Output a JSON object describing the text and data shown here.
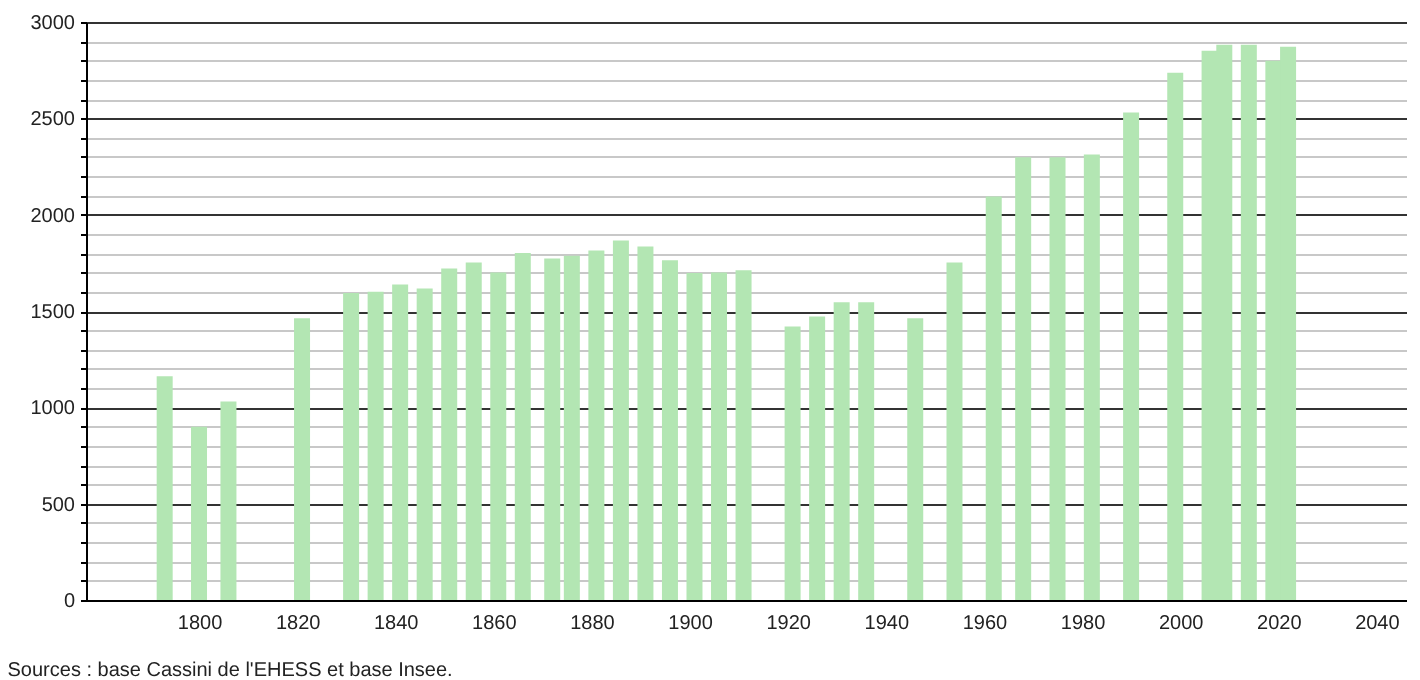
{
  "chart_data": {
    "type": "bar",
    "x": [
      1793,
      1800,
      1806,
      1821,
      1831,
      1836,
      1841,
      1846,
      1851,
      1856,
      1861,
      1866,
      1872,
      1876,
      1881,
      1886,
      1891,
      1896,
      1901,
      1906,
      1911,
      1921,
      1926,
      1931,
      1936,
      1946,
      1954,
      1962,
      1968,
      1975,
      1982,
      1990,
      1999,
      2006,
      2009,
      2014,
      2019,
      2022
    ],
    "values": [
      1161,
      899,
      1030,
      1462,
      1593,
      1600,
      1638,
      1617,
      1721,
      1752,
      1700,
      1801,
      1773,
      1787,
      1814,
      1866,
      1835,
      1763,
      1697,
      1700,
      1711,
      1420,
      1472,
      1545,
      1545,
      1462,
      1752,
      2094,
      2298,
      2298,
      2312,
      2530,
      2737,
      2851,
      2882,
      2882,
      2799,
      2872
    ],
    "color": "#b3e6b3",
    "xlim": [
      1779,
      2044
    ],
    "xticks": [
      1800,
      1820,
      1840,
      1860,
      1880,
      1900,
      1920,
      1940,
      1960,
      1980,
      2000,
      2020,
      2040
    ],
    "ylim": [
      0,
      3000
    ],
    "yticks": [
      0,
      {
        "value": 100,
        "label": null
      },
      {
        "value": 200,
        "label": null
      },
      {
        "value": 300,
        "label": null
      },
      {
        "value": 400,
        "label": null
      },
      500,
      {
        "value": 600,
        "label": null
      },
      {
        "value": 700,
        "label": null
      },
      {
        "value": 800,
        "label": null
      },
      {
        "value": 900,
        "label": null
      },
      1000,
      {
        "value": 1100,
        "label": null
      },
      {
        "value": 1200,
        "label": null
      },
      {
        "value": 1300,
        "label": null
      },
      {
        "value": 1400,
        "label": null
      },
      1500,
      {
        "value": 1600,
        "label": null
      },
      {
        "value": 1700,
        "label": null
      },
      {
        "value": 1800,
        "label": null
      },
      {
        "value": 1900,
        "label": null
      },
      2000,
      {
        "value": 2100,
        "label": null
      },
      {
        "value": 2200,
        "label": null
      },
      {
        "value": 2300,
        "label": null
      },
      {
        "value": 2400,
        "label": null
      },
      2500,
      {
        "value": 2600,
        "label": null
      },
      {
        "value": 2700,
        "label": null
      },
      {
        "value": 2800,
        "label": null
      },
      {
        "value": 2900,
        "label": null
      },
      3000
    ],
    "grid": "y",
    "annotations": [
      "Sources : base Cassini de l'EHESS et base Insee."
    ]
  }
}
